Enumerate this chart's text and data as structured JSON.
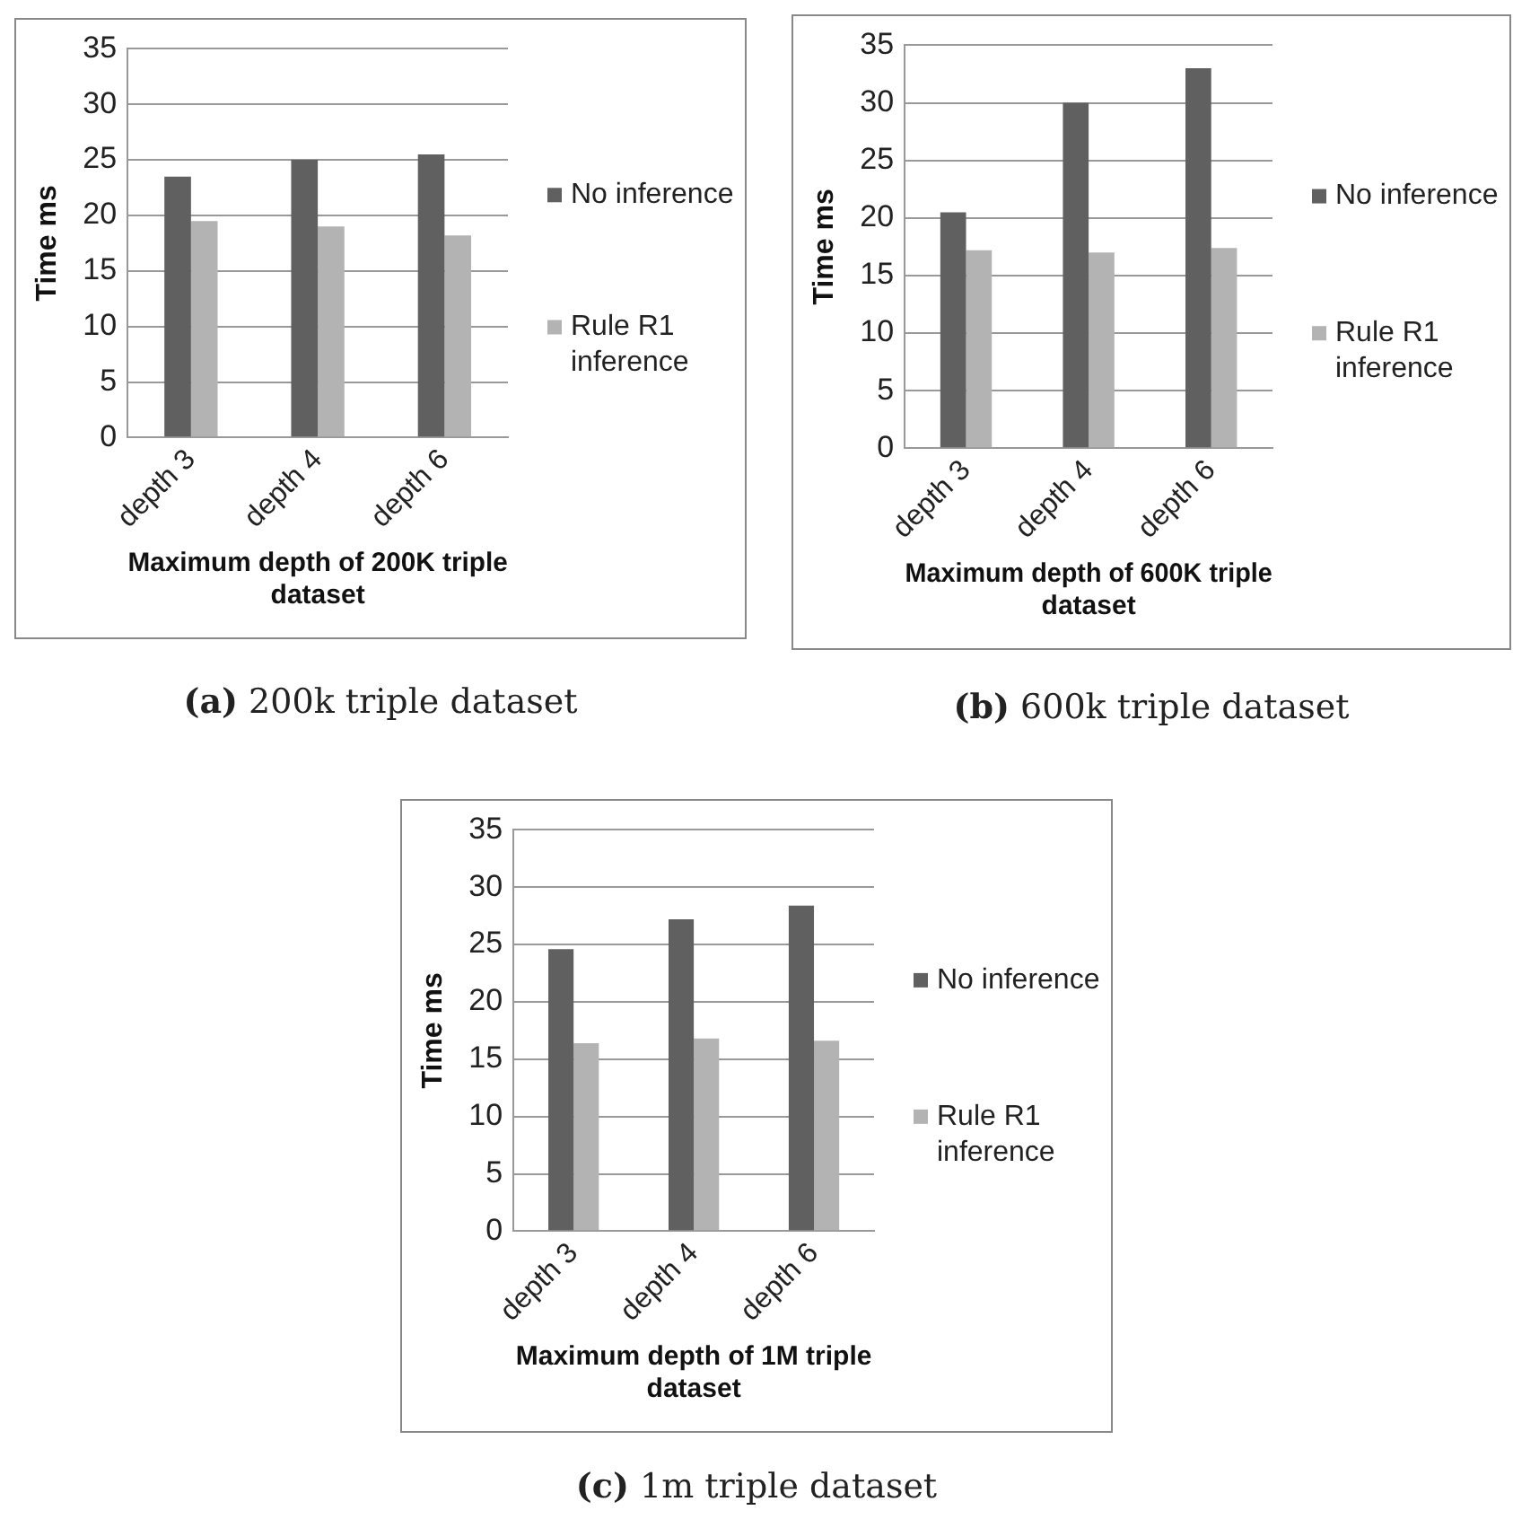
{
  "chart_data": [
    {
      "type": "bar",
      "categories": [
        "depth 3",
        "depth 4",
        "depth 6"
      ],
      "series": [
        {
          "name": "No inference",
          "color": "#606060",
          "values": [
            23.5,
            25,
            25.5
          ]
        },
        {
          "name": "Rule R1 inference",
          "color": "#b3b3b3",
          "values": [
            19.5,
            19,
            18.2
          ]
        }
      ],
      "ylabel": "Time ms",
      "xlabel": "Maximum depth of 200K triple dataset",
      "ylim": [
        0,
        35
      ],
      "yticks": [
        0,
        5,
        10,
        15,
        20,
        25,
        30,
        35
      ],
      "grid": "y",
      "legend": "right",
      "annotations": [
        "(a) 200k triple dataset"
      ]
    },
    {
      "type": "bar",
      "categories": [
        "depth 3",
        "depth 4",
        "depth 6"
      ],
      "series": [
        {
          "name": "No inference",
          "color": "#606060",
          "values": [
            20.5,
            30,
            33
          ]
        },
        {
          "name": "Rule R1 inference",
          "color": "#b3b3b3",
          "values": [
            17.2,
            17,
            17.4
          ]
        }
      ],
      "ylabel": "Time ms",
      "xlabel": "Maximum depth of 600K triple dataset",
      "ylim": [
        0,
        35
      ],
      "yticks": [
        0,
        5,
        10,
        15,
        20,
        25,
        30,
        35
      ],
      "grid": "y",
      "legend": "right",
      "annotations": [
        "(b) 600k triple dataset"
      ]
    },
    {
      "type": "bar",
      "categories": [
        "depth 3",
        "depth 4",
        "depth 6"
      ],
      "series": [
        {
          "name": "No inference",
          "color": "#606060",
          "values": [
            24.6,
            27.2,
            28.4
          ]
        },
        {
          "name": "Rule R1 inference",
          "color": "#b3b3b3",
          "values": [
            16.4,
            16.8,
            16.6
          ]
        }
      ],
      "ylabel": "Time ms",
      "xlabel": "Maximum depth of 1M triple dataset",
      "ylim": [
        0,
        35
      ],
      "yticks": [
        0,
        5,
        10,
        15,
        20,
        25,
        30,
        35
      ],
      "grid": "y",
      "legend": "right",
      "annotations": [
        "(c) 1m triple dataset"
      ]
    }
  ]
}
